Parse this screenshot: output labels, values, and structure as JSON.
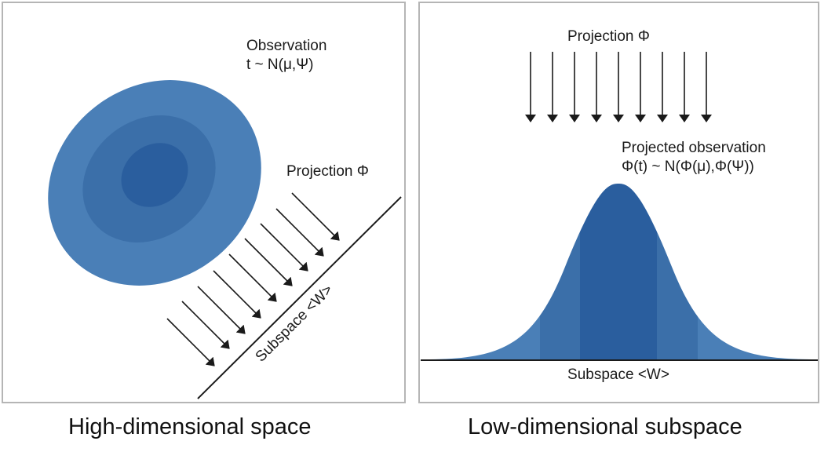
{
  "left_panel": {
    "observation_title": "Observation",
    "observation_formula": "t ~ N(μ,Ψ)",
    "projection_label": "Projection Φ",
    "subspace_label": "Subspace <W>",
    "caption": "High-dimensional space"
  },
  "right_panel": {
    "projection_label": "Projection Φ",
    "projected_title": "Projected observation",
    "projected_formula": "Φ(t) ~ N(Φ(μ),Φ(Ψ))",
    "subspace_label": "Subspace <W>",
    "caption": "Low-dimensional subspace"
  },
  "colors": {
    "outer_band": "#4a7fb7",
    "middle_band": "#3b6fa9",
    "inner_band": "#2a5e9e",
    "arrow": "#1a1a1a",
    "frame": "#b5b5b5"
  }
}
